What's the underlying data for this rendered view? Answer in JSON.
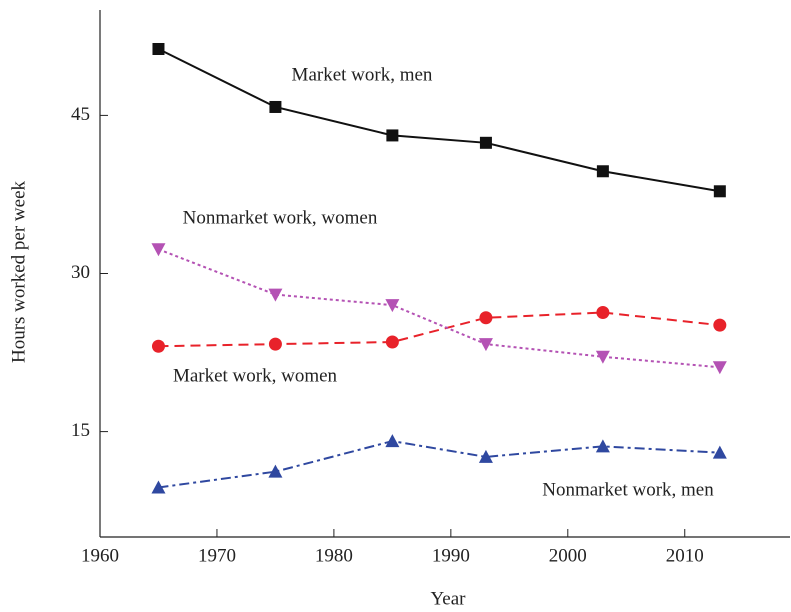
{
  "chart_data": {
    "type": "line",
    "x_label": "Year",
    "y_label": "Hours worked per week",
    "x": [
      1965,
      1975,
      1985,
      1993,
      2003,
      2013
    ],
    "series": [
      {
        "name": "Market work, men",
        "color": "#111111",
        "marker": "square",
        "dash": "solid",
        "values": [
          51.3,
          45.8,
          43.1,
          42.4,
          39.7,
          37.8
        ]
      },
      {
        "name": "Market work, women",
        "color": "#e8222a",
        "marker": "circle",
        "dash": "dashed",
        "values": [
          23.1,
          23.3,
          23.5,
          25.8,
          26.3,
          25.1
        ]
      },
      {
        "name": "Nonmarket work, women",
        "color": "#b452b4",
        "marker": "triangle-down",
        "dash": "dotted",
        "values": [
          32.3,
          28.0,
          27.0,
          23.3,
          22.1,
          21.1
        ]
      },
      {
        "name": "Nonmarket work, men",
        "color": "#2f48a0",
        "marker": "triangle-up",
        "dash": "dashdot",
        "values": [
          9.7,
          11.2,
          14.1,
          12.6,
          13.6,
          13.0
        ]
      }
    ],
    "xlim": [
      1960,
      2019
    ],
    "xticks": [
      1960,
      1970,
      1980,
      1990,
      2000,
      2010
    ],
    "ylim": [
      5,
      55
    ],
    "yticks": [
      15,
      30,
      45
    ],
    "grid": false
  }
}
